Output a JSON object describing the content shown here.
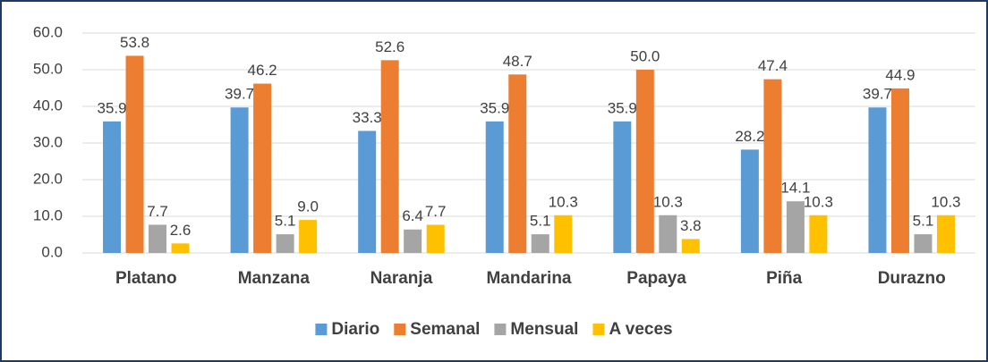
{
  "chart_data": {
    "type": "bar",
    "categories": [
      "Platano",
      "Manzana",
      "Naranja",
      "Mandarina",
      "Papaya",
      "Piña",
      "Durazno"
    ],
    "series": [
      {
        "name": "Diario",
        "color": "#5b9bd5",
        "values": [
          35.9,
          39.7,
          33.3,
          35.9,
          35.9,
          28.2,
          39.7
        ],
        "value_labels": [
          "35.9",
          "39.7",
          "33.3",
          "35.9",
          "35.9",
          "28.2",
          "39.7"
        ]
      },
      {
        "name": "Semanal",
        "color": "#ed7d31",
        "values": [
          53.8,
          46.2,
          52.6,
          48.7,
          50.0,
          47.4,
          44.9
        ],
        "value_labels": [
          "53.8",
          "46.2",
          "52.6",
          "48.7",
          "50.0",
          "47.4",
          "44.9"
        ]
      },
      {
        "name": "Mensual",
        "color": "#a5a5a5",
        "values": [
          7.7,
          5.1,
          6.4,
          5.1,
          10.3,
          14.1,
          5.1
        ],
        "value_labels": [
          "7.7",
          "5.1",
          "6.4",
          "5.1",
          "10.3",
          "14.1",
          "5.1"
        ]
      },
      {
        "name": "A veces",
        "color": "#ffc000",
        "values": [
          2.6,
          9.0,
          7.7,
          10.3,
          3.8,
          10.3,
          10.3
        ],
        "value_labels": [
          "2.6",
          "9.0",
          "7.7",
          "10.3",
          "3.8",
          "10.3",
          "10.3"
        ]
      }
    ],
    "ylim": [
      0,
      60
    ],
    "yticks": [
      {
        "value": 0,
        "label": "0.0"
      },
      {
        "value": 10,
        "label": "10.0"
      },
      {
        "value": 20,
        "label": "20.0"
      },
      {
        "value": 30,
        "label": "30.0"
      },
      {
        "value": 40,
        "label": "40.0"
      },
      {
        "value": 50,
        "label": "50.0"
      },
      {
        "value": 60,
        "label": "60.0"
      }
    ],
    "grid": true,
    "legend": "bottom"
  }
}
